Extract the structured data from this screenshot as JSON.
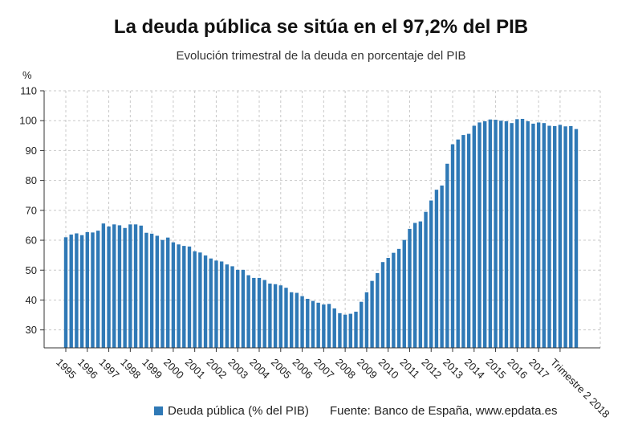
{
  "colors": {
    "bar": "#2f79b6",
    "grid": "#c8c8c8",
    "axis": "#333333"
  },
  "chart_data": {
    "type": "bar",
    "title": "La deuda pública se sitúa en el 97,2% del PIB",
    "subtitle": "Evolución trimestral de la deuda en porcentaje del PIB",
    "ylabel": "%",
    "xlabel": "",
    "ylim": [
      24,
      110
    ],
    "yticks": [
      30,
      40,
      50,
      60,
      70,
      80,
      90,
      100,
      110
    ],
    "grid": true,
    "legend_position": "bottom",
    "x_tick_labels": [
      "1995",
      "1996",
      "1997",
      "1998",
      "1999",
      "2000",
      "2001",
      "2002",
      "2003",
      "2004",
      "2005",
      "2006",
      "2007",
      "2008",
      "2009",
      "2010",
      "2011",
      "2012",
      "2013",
      "2014",
      "2015",
      "2016",
      "2017",
      "Trimestre 2 2018"
    ],
    "series": [
      {
        "name": "Deuda pública (% del PIB)",
        "values": [
          61.0,
          61.9,
          62.3,
          61.7,
          62.7,
          62.6,
          63.2,
          65.6,
          64.6,
          65.3,
          65.0,
          64.1,
          65.3,
          65.3,
          64.9,
          62.5,
          62.2,
          61.5,
          60.1,
          60.9,
          59.3,
          58.6,
          58.1,
          57.9,
          56.3,
          55.9,
          54.9,
          53.9,
          53.2,
          52.9,
          51.9,
          51.3,
          50.1,
          50.1,
          48.3,
          47.4,
          47.4,
          46.7,
          45.5,
          45.3,
          44.9,
          44.1,
          42.6,
          42.4,
          41.3,
          40.4,
          39.7,
          39.1,
          38.5,
          38.7,
          37.2,
          35.6,
          35.1,
          35.4,
          36.1,
          39.4,
          42.6,
          46.4,
          49.0,
          52.7,
          54.1,
          55.8,
          57.1,
          60.1,
          63.8,
          65.8,
          66.3,
          69.5,
          73.3,
          76.9,
          78.3,
          85.6,
          92.1,
          93.7,
          95.2,
          95.6,
          98.3,
          99.4,
          99.8,
          100.4,
          100.3,
          100.0,
          99.8,
          99.2,
          100.5,
          100.6,
          99.8,
          99.0,
          99.4,
          99.2,
          98.3,
          98.2,
          98.6,
          98.1,
          98.2,
          97.2
        ]
      }
    ]
  },
  "legend": {
    "label": "Deuda pública (% del PIB)"
  },
  "source": "Fuente: Banco de España, www.epdata.es"
}
